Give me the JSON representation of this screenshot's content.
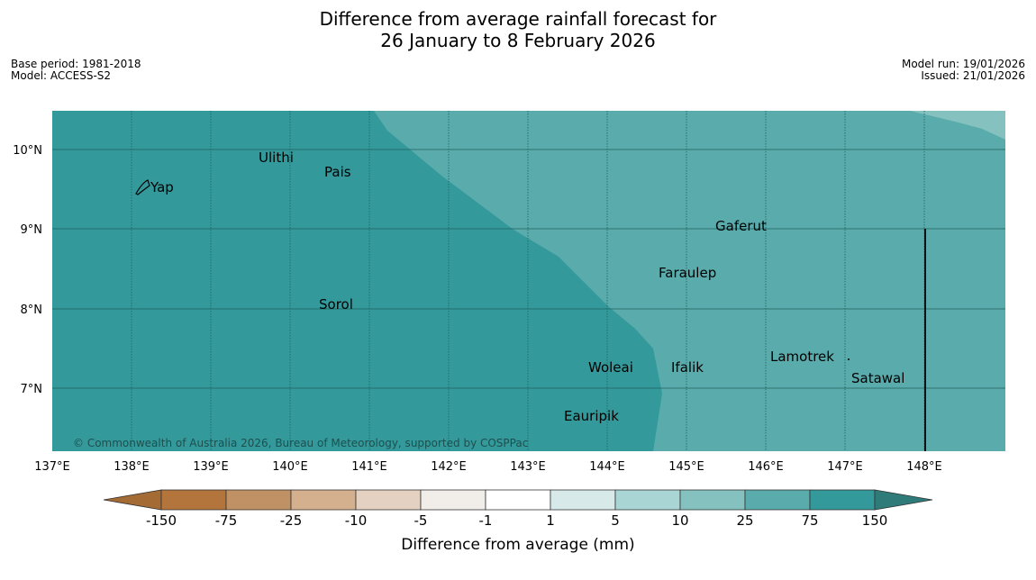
{
  "header": {
    "title_line1": "Difference from average rainfall forecast for",
    "title_line2": "26 January to 8 February 2026",
    "base_period": "Base period: 1981-2018",
    "model": "Model: ACCESS-S2",
    "model_run": "Model run: 19/01/2026",
    "issued": "Issued: 21/01/2026"
  },
  "map": {
    "lat_labels": [
      "10°N",
      "9°N",
      "8°N",
      "7°N"
    ],
    "lon_labels": [
      "137°E",
      "138°E",
      "139°E",
      "140°E",
      "141°E",
      "142°E",
      "143°E",
      "144°E",
      "145°E",
      "146°E",
      "147°E",
      "148°E"
    ],
    "places": [
      "Ulithi",
      "Pais",
      "Yap",
      "Gaferut",
      "Faraulep",
      "Sorol",
      "Lamotrek",
      "Woleai",
      "Ifalik",
      "Satawal",
      "Eauripik"
    ],
    "copyright": "© Commonwealth of Australia 2026, Bureau of Meteorology, supported by COSPPac",
    "colors": {
      "very_wet": "#33999a",
      "wet": "#5aabab",
      "moderately_wet": "#84c1bf"
    }
  },
  "legend": {
    "ticks": [
      "-150",
      "-75",
      "-25",
      "-10",
      "-5",
      "-1",
      "1",
      "5",
      "10",
      "25",
      "75",
      "150"
    ],
    "colors": [
      "#a56b35",
      "#b3753b",
      "#c09165",
      "#d4b08e",
      "#e4d1c1",
      "#f1ede8",
      "#ffffff",
      "#d7eae9",
      "#a9d6d5",
      "#84c1bf",
      "#5aabab",
      "#33999a",
      "#2e7b79"
    ],
    "xlabel": "Difference from average (mm)"
  }
}
